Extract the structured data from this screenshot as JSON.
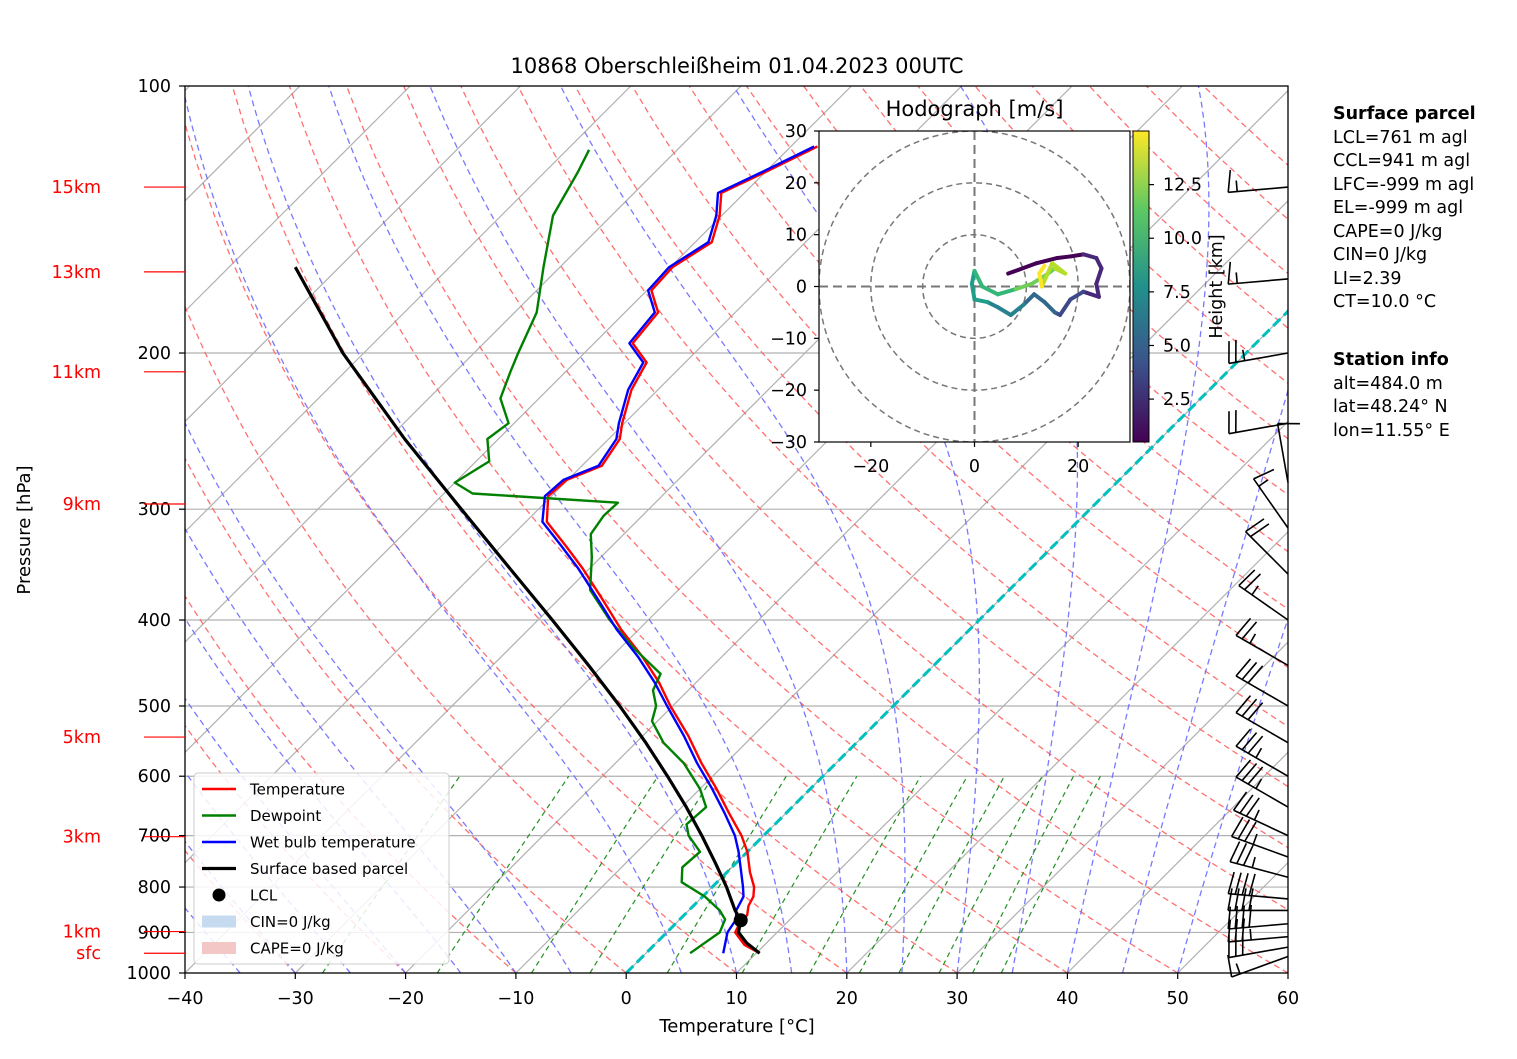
{
  "chart_data": {
    "type": "skew-t log-p diagram",
    "title": "10868 Oberschleißheim 01.04.2023 00UTC",
    "xlabel": "Temperature [°C]",
    "ylabel": "Pressure [hPa]",
    "xlim": [
      -40,
      60
    ],
    "ylim_hpa": [
      1000,
      100
    ],
    "y_scale": "log (inverted)",
    "x_skew": "isotherms skewed 45°",
    "x_ticks": [
      "−40",
      "−30",
      "−20",
      "−10",
      "0",
      "10",
      "20",
      "30",
      "40",
      "50",
      "60"
    ],
    "y_ticks": [
      "100",
      "200",
      "300",
      "400",
      "500",
      "600",
      "700",
      "800",
      "900",
      "1000"
    ],
    "grid": true,
    "height_markers": [
      {
        "label": "15km",
        "p": 130
      },
      {
        "label": "13km",
        "p": 162
      },
      {
        "label": "11km",
        "p": 210
      },
      {
        "label": "9km",
        "p": 296
      },
      {
        "label": "5km",
        "p": 542
      },
      {
        "label": "3km",
        "p": 702
      },
      {
        "label": "1km",
        "p": 898
      },
      {
        "label": "sfc",
        "p": 950
      }
    ],
    "background_lines": {
      "dry_adiabats": "red dashed",
      "moist_adiabats": "blue dashed",
      "mixing_ratio": "green dashed (lower troposphere)",
      "zero_isotherm": "cyan dashed"
    },
    "series": [
      {
        "name": "Temperature",
        "color": "#ff0000",
        "points": [
          [
            950,
            10.3
          ],
          [
            930,
            8.2
          ],
          [
            900,
            6.2
          ],
          [
            880,
            5.8
          ],
          [
            860,
            5.7
          ],
          [
            840,
            5.0
          ],
          [
            820,
            4.6
          ],
          [
            800,
            3.8
          ],
          [
            770,
            2.1
          ],
          [
            730,
            0.0
          ],
          [
            700,
            -2.0
          ],
          [
            660,
            -5.2
          ],
          [
            620,
            -8.5
          ],
          [
            580,
            -12.2
          ],
          [
            540,
            -15.9
          ],
          [
            500,
            -20.2
          ],
          [
            470,
            -23.4
          ],
          [
            440,
            -27.2
          ],
          [
            410,
            -31.6
          ],
          [
            380,
            -35.9
          ],
          [
            350,
            -40.6
          ],
          [
            330,
            -44.2
          ],
          [
            310,
            -48.1
          ],
          [
            290,
            -50.3
          ],
          [
            278,
            -50.1
          ],
          [
            268,
            -48.2
          ],
          [
            250,
            -49.0
          ],
          [
            240,
            -50.2
          ],
          [
            220,
            -52.4
          ],
          [
            205,
            -53.5
          ],
          [
            195,
            -56.5
          ],
          [
            180,
            -57.0
          ],
          [
            170,
            -59.6
          ],
          [
            160,
            -59.8
          ],
          [
            150,
            -58.5
          ],
          [
            140,
            -60.2
          ],
          [
            132,
            -62.1
          ],
          [
            125,
            -60.0
          ],
          [
            117,
            -57.6
          ]
        ]
      },
      {
        "name": "Dewpoint",
        "color": "#008000",
        "points": [
          [
            950,
            4.0
          ],
          [
            900,
            4.8
          ],
          [
            870,
            4.1
          ],
          [
            850,
            2.8
          ],
          [
            820,
            0.2
          ],
          [
            790,
            -3.2
          ],
          [
            760,
            -4.5
          ],
          [
            730,
            -4.3
          ],
          [
            700,
            -6.8
          ],
          [
            680,
            -8.0
          ],
          [
            650,
            -7.8
          ],
          [
            620,
            -10.0
          ],
          [
            580,
            -13.8
          ],
          [
            550,
            -17.5
          ],
          [
            520,
            -20.5
          ],
          [
            500,
            -21.5
          ],
          [
            480,
            -23.2
          ],
          [
            460,
            -24.0
          ],
          [
            430,
            -28.8
          ],
          [
            400,
            -33.5
          ],
          [
            370,
            -38.0
          ],
          [
            340,
            -40.8
          ],
          [
            320,
            -43.0
          ],
          [
            305,
            -43.5
          ],
          [
            295,
            -43.4
          ],
          [
            288,
            -57.4
          ],
          [
            280,
            -60.0
          ],
          [
            265,
            -58.8
          ],
          [
            250,
            -61.0
          ],
          [
            240,
            -60.5
          ],
          [
            225,
            -63.5
          ],
          [
            210,
            -65.0
          ],
          [
            200,
            -66.0
          ],
          [
            180,
            -68.0
          ],
          [
            160,
            -71.5
          ],
          [
            140,
            -75.3
          ],
          [
            125,
            -77.0
          ],
          [
            118,
            -78.0
          ]
        ]
      },
      {
        "name": "Wet bulb temperature",
        "color": "#0000ff",
        "points": [
          [
            950,
            7.0
          ],
          [
            900,
            5.5
          ],
          [
            870,
            5.1
          ],
          [
            850,
            4.3
          ],
          [
            820,
            3.7
          ],
          [
            800,
            2.8
          ],
          [
            770,
            1.3
          ],
          [
            730,
            -0.8
          ],
          [
            700,
            -2.6
          ],
          [
            660,
            -5.6
          ],
          [
            620,
            -8.9
          ],
          [
            580,
            -12.6
          ],
          [
            540,
            -16.3
          ],
          [
            500,
            -20.5
          ],
          [
            470,
            -23.8
          ],
          [
            440,
            -27.6
          ],
          [
            410,
            -32.0
          ],
          [
            380,
            -36.3
          ],
          [
            350,
            -41.0
          ],
          [
            330,
            -44.6
          ],
          [
            310,
            -48.5
          ],
          [
            290,
            -50.6
          ],
          [
            278,
            -50.4
          ],
          [
            268,
            -48.5
          ],
          [
            250,
            -49.3
          ],
          [
            240,
            -50.5
          ],
          [
            220,
            -52.7
          ],
          [
            205,
            -53.8
          ],
          [
            195,
            -56.8
          ],
          [
            180,
            -57.3
          ],
          [
            170,
            -59.9
          ],
          [
            160,
            -60.1
          ],
          [
            150,
            -58.8
          ],
          [
            140,
            -60.5
          ],
          [
            132,
            -62.4
          ],
          [
            125,
            -60.3
          ],
          [
            117,
            -57.9
          ]
        ]
      },
      {
        "name": "Surface based parcel",
        "color": "#000000",
        "points": [
          [
            950,
            10.3
          ],
          [
            925,
            8.2
          ],
          [
            900,
            6.5
          ],
          [
            872,
            5.6
          ],
          [
            850,
            4.2
          ],
          [
            800,
            1.3
          ],
          [
            750,
            -2.0
          ],
          [
            700,
            -5.6
          ],
          [
            650,
            -9.6
          ],
          [
            600,
            -14.1
          ],
          [
            550,
            -19.1
          ],
          [
            500,
            -24.8
          ],
          [
            450,
            -31.3
          ],
          [
            400,
            -38.7
          ],
          [
            350,
            -47.2
          ],
          [
            300,
            -57.0
          ],
          [
            250,
            -68.5
          ],
          [
            200,
            -81.9
          ],
          [
            160,
            -94.0
          ]
        ]
      }
    ],
    "lcl": {
      "label": "LCL",
      "p": 872,
      "t": 5.6
    },
    "legend": {
      "position": "lower-left",
      "entries": [
        "Temperature",
        "Dewpoint",
        "Wet bulb temperature",
        "Surface based parcel",
        "LCL",
        "CIN=0 J/kg",
        "CAPE=0 J/kg"
      ]
    },
    "wind_barbs": [
      {
        "p": 958,
        "speed_kt": 15,
        "dir_deg": 250
      },
      {
        "p": 935,
        "speed_kt": 30,
        "dir_deg": 260
      },
      {
        "p": 910,
        "speed_kt": 35,
        "dir_deg": 265
      },
      {
        "p": 880,
        "speed_kt": 40,
        "dir_deg": 265
      },
      {
        "p": 850,
        "speed_kt": 40,
        "dir_deg": 270
      },
      {
        "p": 825,
        "speed_kt": 40,
        "dir_deg": 275
      },
      {
        "p": 780,
        "speed_kt": 35,
        "dir_deg": 285
      },
      {
        "p": 740,
        "speed_kt": 35,
        "dir_deg": 290
      },
      {
        "p": 700,
        "speed_kt": 35,
        "dir_deg": 295
      },
      {
        "p": 650,
        "speed_kt": 35,
        "dir_deg": 300
      },
      {
        "p": 600,
        "speed_kt": 35,
        "dir_deg": 300
      },
      {
        "p": 550,
        "speed_kt": 30,
        "dir_deg": 300
      },
      {
        "p": 500,
        "speed_kt": 30,
        "dir_deg": 300
      },
      {
        "p": 450,
        "speed_kt": 25,
        "dir_deg": 300
      },
      {
        "p": 400,
        "speed_kt": 25,
        "dir_deg": 305
      },
      {
        "p": 355,
        "speed_kt": 20,
        "dir_deg": 315
      },
      {
        "p": 315,
        "speed_kt": 15,
        "dir_deg": 325
      },
      {
        "p": 280,
        "speed_kt": 10,
        "dir_deg": 350
      },
      {
        "p": 240,
        "speed_kt": 20,
        "dir_deg": 260
      },
      {
        "p": 200,
        "speed_kt": 25,
        "dir_deg": 260
      },
      {
        "p": 165,
        "speed_kt": 15,
        "dir_deg": 265
      },
      {
        "p": 130,
        "speed_kt": 15,
        "dir_deg": 265
      }
    ],
    "hodograph": {
      "title": "Hodograph [m/s]",
      "xlim": [
        -30,
        30
      ],
      "ylim": [
        -30,
        30
      ],
      "x_ticks": [
        "−20",
        "0",
        "20"
      ],
      "y_ticks": [
        "30",
        "20",
        "10",
        "0",
        "−10",
        "−20",
        "−30"
      ],
      "rings_ms": [
        10,
        20,
        30
      ],
      "colorbar": {
        "label": "Height [km]",
        "ticks": [
          "2.5",
          "5.0",
          "7.5",
          "10.0",
          "12.5"
        ],
        "range": [
          0.5,
          15
        ],
        "colormap": "viridis"
      },
      "trace": [
        {
          "h": 0.5,
          "u": 6.5,
          "v": 2.5
        },
        {
          "h": 0.9,
          "u": 12.0,
          "v": 4.5
        },
        {
          "h": 1.3,
          "u": 16.0,
          "v": 5.5
        },
        {
          "h": 1.7,
          "u": 18.5,
          "v": 5.8
        },
        {
          "h": 2.0,
          "u": 21.0,
          "v": 6.2
        },
        {
          "h": 2.3,
          "u": 23.5,
          "v": 5.5
        },
        {
          "h": 2.6,
          "u": 24.5,
          "v": 3.5
        },
        {
          "h": 2.9,
          "u": 23.5,
          "v": 0.5
        },
        {
          "h": 3.2,
          "u": 24.0,
          "v": -2.0
        },
        {
          "h": 3.6,
          "u": 21.0,
          "v": -1.0
        },
        {
          "h": 4.0,
          "u": 18.5,
          "v": -2.5
        },
        {
          "h": 4.5,
          "u": 16.5,
          "v": -5.5
        },
        {
          "h": 5.0,
          "u": 15.5,
          "v": -5.0
        },
        {
          "h": 5.5,
          "u": 13.5,
          "v": -3.0
        },
        {
          "h": 6.0,
          "u": 11.5,
          "v": -1.5
        },
        {
          "h": 6.5,
          "u": 9.5,
          "v": -3.5
        },
        {
          "h": 7.0,
          "u": 7.0,
          "v": -5.5
        },
        {
          "h": 7.5,
          "u": 4.5,
          "v": -4.0
        },
        {
          "h": 8.0,
          "u": 2.5,
          "v": -3.0
        },
        {
          "h": 8.5,
          "u": 0.0,
          "v": -2.5
        },
        {
          "h": 9.0,
          "u": -0.5,
          "v": 0.5
        },
        {
          "h": 9.5,
          "u": 0.0,
          "v": 3.0
        },
        {
          "h": 10.0,
          "u": 1.5,
          "v": 0.0
        },
        {
          "h": 10.5,
          "u": 4.5,
          "v": -1.5
        },
        {
          "h": 11.0,
          "u": 8.0,
          "v": -0.5
        },
        {
          "h": 11.5,
          "u": 11.0,
          "v": 0.5
        },
        {
          "h": 12.0,
          "u": 13.5,
          "v": 2.0
        },
        {
          "h": 12.5,
          "u": 15.5,
          "v": 3.5
        },
        {
          "h": 13.0,
          "u": 17.5,
          "v": 2.5
        },
        {
          "h": 13.5,
          "u": 15.0,
          "v": 4.5
        },
        {
          "h": 14.0,
          "u": 13.0,
          "v": 0.0
        },
        {
          "h": 14.5,
          "u": 12.5,
          "v": 2.5
        },
        {
          "h": 15.0,
          "u": 13.5,
          "v": 4.0
        }
      ]
    }
  },
  "info": {
    "surface_parcel_heading": "Surface parcel",
    "surface_parcel": [
      "LCL=761 m agl",
      "CCL=941 m agl",
      "LFC=-999 m agl",
      "EL=-999 m agl",
      "CAPE=0 J/kg",
      "CIN=0 J/kg",
      "LI=2.39",
      "CT=10.0 °C"
    ],
    "station_heading": "Station info",
    "station": [
      "alt=484.0 m",
      "lat=48.24° N",
      "lon=11.55° E"
    ]
  },
  "colors": {
    "temperature": "#ff0000",
    "dewpoint": "#008000",
    "wetbulb": "#0000ff",
    "parcel": "#000000",
    "height_labels": "#ff0000",
    "zero_isotherm": "#00bfbf",
    "cin_patch": "#c6dbef",
    "cape_patch": "#f4c7c7"
  }
}
